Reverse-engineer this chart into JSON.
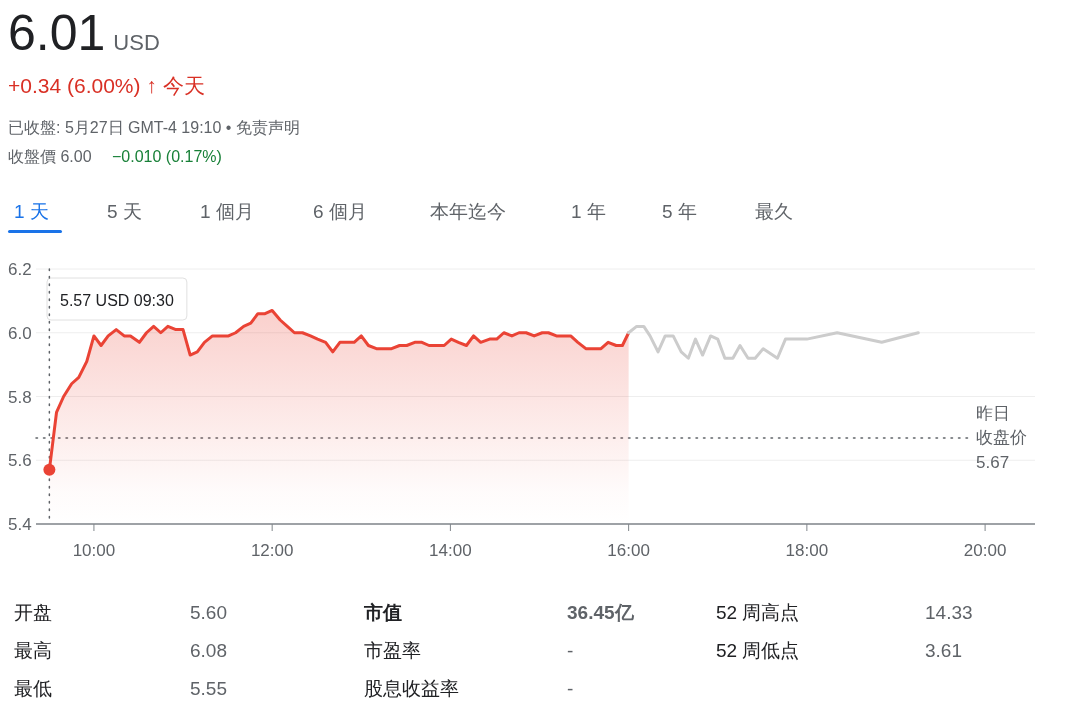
{
  "chart_data": {
    "type": "area",
    "title": "6.01 USD",
    "subtitle": "+0.34 (6.00%) ↑ 今天",
    "annotations": [
      "已收盤: 5月27日 GMT-4 19:10 • 免责声明",
      "收盤價 6.00",
      "−0.010 (0.17%)",
      "1 天",
      "5 天",
      "1 個月",
      "6 個月",
      "本年迄今",
      "1 年",
      "5 年",
      "最久",
      "开盘",
      "5.60",
      "市值",
      "36.45亿",
      "52 周高点",
      "14.33",
      "最高",
      "6.08",
      "市盈率",
      "-",
      "52 周低点",
      "3.61",
      "最低",
      "5.55",
      "股息收益率",
      "-",
      "5.57 USD  09:30"
    ],
    "series": [
      {
        "color": "#ea4335",
        "x": [
          9.5,
          9.58,
          9.66,
          9.75,
          9.83,
          9.92,
          10.0,
          10.08,
          10.16,
          10.25,
          10.34,
          10.41,
          10.51,
          10.59,
          10.67,
          10.75,
          10.83,
          10.92,
          11.0,
          11.08,
          11.16,
          11.24,
          11.33,
          11.43,
          11.51,
          11.59,
          11.68,
          11.76,
          11.84,
          11.92,
          12.0,
          12.09,
          12.17,
          12.25,
          12.34,
          12.43,
          12.51,
          12.6,
          12.68,
          12.76,
          12.84,
          12.92,
          13.0,
          13.08,
          13.17,
          13.26,
          13.34,
          13.43,
          13.51,
          13.6,
          13.68,
          13.76,
          13.85,
          13.93,
          14.01,
          14.09,
          14.18,
          14.26,
          14.34,
          14.44,
          14.52,
          14.6,
          14.69,
          14.77,
          14.85,
          14.94,
          15.03,
          15.1,
          15.19,
          15.27,
          15.35,
          15.43,
          15.52,
          15.61,
          15.69,
          15.77,
          15.86,
          15.93,
          16.0
        ],
        "values": [
          5.57,
          5.75,
          5.8,
          5.84,
          5.86,
          5.91,
          5.99,
          5.96,
          5.99,
          6.01,
          5.99,
          5.99,
          5.97,
          6.0,
          6.02,
          6.0,
          6.02,
          6.01,
          6.01,
          5.93,
          5.94,
          5.97,
          5.99,
          5.99,
          5.99,
          6.0,
          6.02,
          6.03,
          6.06,
          6.06,
          6.07,
          6.04,
          6.02,
          6.0,
          6.0,
          5.99,
          5.98,
          5.97,
          5.94,
          5.97,
          5.97,
          5.97,
          5.99,
          5.96,
          5.95,
          5.95,
          5.95,
          5.96,
          5.96,
          5.97,
          5.97,
          5.96,
          5.96,
          5.96,
          5.98,
          5.97,
          5.96,
          5.99,
          5.97,
          5.98,
          5.98,
          6.0,
          5.99,
          6.0,
          6.0,
          5.99,
          6.0,
          6.0,
          5.99,
          5.99,
          5.99,
          5.97,
          5.95,
          5.95,
          5.95,
          5.97,
          5.96,
          5.96,
          6.0
        ]
      },
      {
        "type": "line",
        "color": "#cccccc",
        "x": [
          16.0,
          16.09,
          16.17,
          16.24,
          16.33,
          16.41,
          16.5,
          16.59,
          16.67,
          16.75,
          16.83,
          16.92,
          17.0,
          17.08,
          17.17,
          17.25,
          17.34,
          17.42,
          17.51,
          17.67,
          17.76,
          18.0,
          18.34,
          18.84,
          19.25
        ],
        "values": [
          6.0,
          6.02,
          6.02,
          5.99,
          5.94,
          5.99,
          5.99,
          5.94,
          5.92,
          5.98,
          5.93,
          5.99,
          5.98,
          5.92,
          5.92,
          5.96,
          5.92,
          5.92,
          5.95,
          5.92,
          5.98,
          5.98,
          6.0,
          5.97,
          6.0
        ]
      },
      {
        "type": "scatter",
        "color": "#ea4335",
        "x": [
          9.5
        ],
        "values": [
          5.57
        ]
      }
    ],
    "xlim": [
      9.35,
      20.56
    ],
    "ylim": [
      5.4,
      6.2
    ],
    "xticks": [
      {
        "value": 10,
        "label": "10:00"
      },
      {
        "value": 12,
        "label": "12:00"
      },
      {
        "value": 14,
        "label": "14:00"
      },
      {
        "value": 16,
        "label": "16:00"
      },
      {
        "value": 18,
        "label": "18:00"
      },
      {
        "value": 20,
        "label": "20:00"
      }
    ],
    "yticks": [
      {
        "value": 5.4,
        "label": "5.4"
      },
      {
        "value": 5.6,
        "label": "5.6"
      },
      {
        "value": 5.8,
        "label": "5.8"
      },
      {
        "value": 6.0,
        "label": "6.0"
      },
      {
        "value": 6.2,
        "label": "6.2"
      }
    ],
    "grid": "y",
    "ref_lines": [
      {
        "axis": "y",
        "value": 5.67,
        "label": "昨日收盘价 5.67",
        "line_style": "dotted",
        "color": "#5f6368"
      },
      {
        "axis": "x",
        "value": 9.5,
        "line_style": "dotted",
        "color": "#5f6368"
      }
    ],
    "line_style": "solid"
  }
}
